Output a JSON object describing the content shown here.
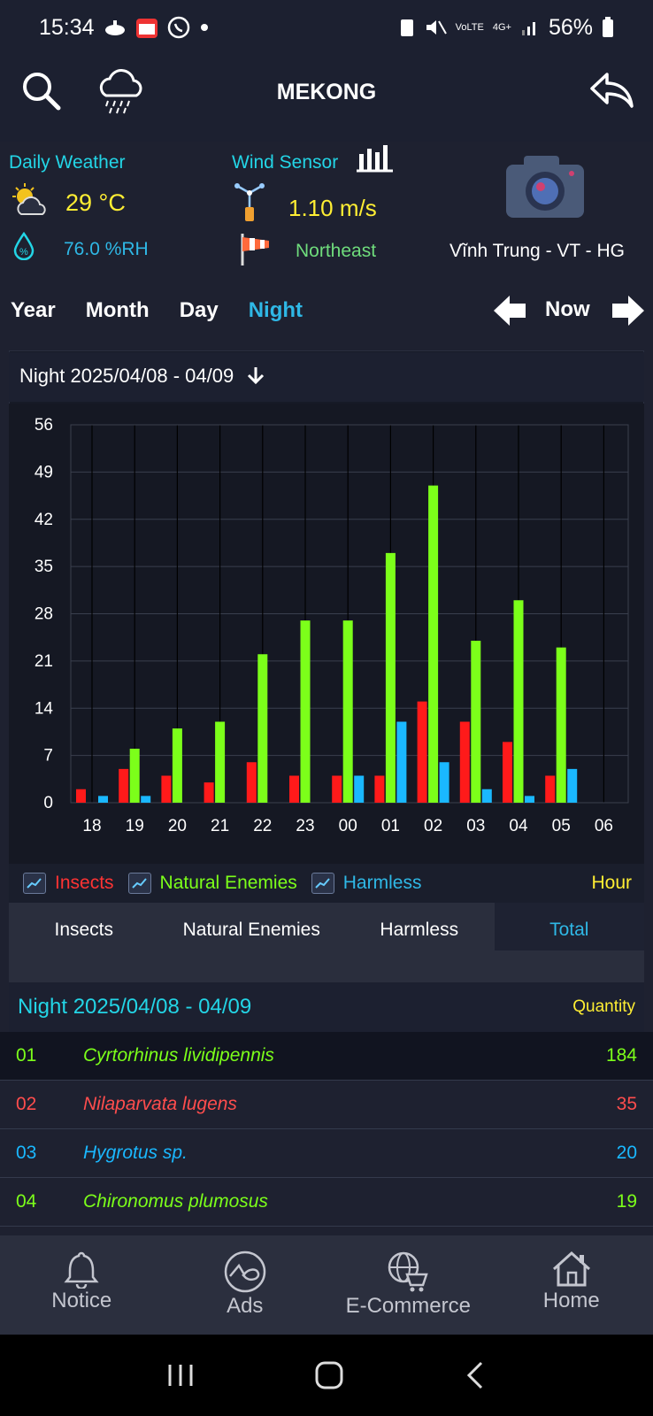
{
  "status": {
    "time": "15:34",
    "battery": "56%",
    "net_top": "4G+",
    "lte": "VoLTE"
  },
  "app": {
    "title": "MEKONG"
  },
  "weather": {
    "daily_label": "Daily Weather",
    "temp": "29 °C",
    "humidity": "76.0 %RH",
    "wind_label": "Wind Sensor",
    "wind_speed": "1.10 m/s",
    "wind_dir": "Northeast",
    "location": "Vĩnh Trung - VT - HG"
  },
  "tabs": {
    "year": "Year",
    "month": "Month",
    "day": "Day",
    "night": "Night",
    "now": "Now"
  },
  "panel": {
    "title": "Night 2025/04/08 - 04/09"
  },
  "chart_data": {
    "type": "bar",
    "categories": [
      "18",
      "19",
      "20",
      "21",
      "22",
      "23",
      "00",
      "01",
      "02",
      "03",
      "04",
      "05",
      "06"
    ],
    "series": [
      {
        "name": "Insects",
        "color": "#ff1a1a",
        "values": [
          2,
          5,
          4,
          3,
          6,
          4,
          4,
          4,
          15,
          12,
          9,
          4,
          0
        ]
      },
      {
        "name": "Natural Enemies",
        "color": "#7cff1a",
        "values": [
          0,
          8,
          11,
          12,
          22,
          27,
          27,
          37,
          47,
          24,
          30,
          23,
          0
        ]
      },
      {
        "name": "Harmless",
        "color": "#1ab8ff",
        "values": [
          1,
          1,
          0,
          0,
          0,
          0,
          4,
          12,
          6,
          2,
          1,
          5,
          0
        ]
      }
    ],
    "yticks": [
      "56",
      "49",
      "42",
      "35",
      "28",
      "21",
      "14",
      "7",
      "0"
    ],
    "ylim": [
      0,
      56
    ],
    "xlabel": "Hour",
    "legend": "bottom"
  },
  "legend": {
    "insects": "Insects",
    "natural": "Natural Enemies",
    "harmless": "Harmless",
    "hour": "Hour"
  },
  "subtabs": {
    "insects": "Insects",
    "natural": "Natural Enemies",
    "harmless": "Harmless",
    "total": "Total"
  },
  "list": {
    "title": "Night 2025/04/08 - 04/09",
    "quantity": "Quantity",
    "rows": [
      {
        "num": "01",
        "name": "Cyrtorhinus lividipennis",
        "count": "184",
        "color": "#7cff1a"
      },
      {
        "num": "02",
        "name": "Nilaparvata lugens",
        "count": "35",
        "color": "#ff4d4d"
      },
      {
        "num": "03",
        "name": "Hygrotus sp.",
        "count": "20",
        "color": "#1ab8ff"
      },
      {
        "num": "04",
        "name": "Chironomus plumosus",
        "count": "19",
        "color": "#7cff1a"
      }
    ]
  },
  "nav": {
    "notice": "Notice",
    "ads": "Ads",
    "ecommerce": "E-Commerce",
    "home": "Home"
  }
}
